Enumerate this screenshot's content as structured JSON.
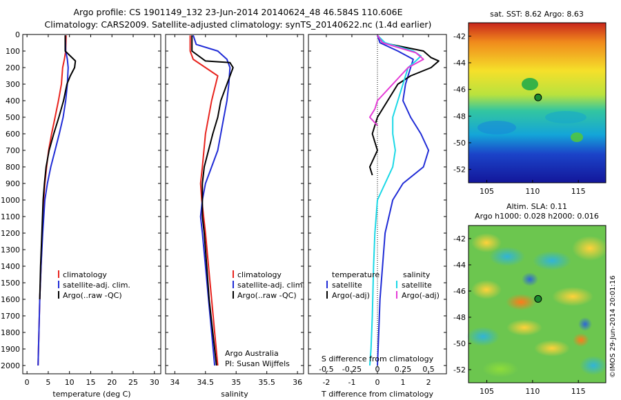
{
  "header": {
    "line1": "Argo profile: CS 1901149_132 23-Jun-2014 20140624_48 46.584S 110.606E",
    "line2": "Climatology: CARS2009. Satellite-adjusted climatology: synTS_20140622.nc (1.4d earlier)"
  },
  "colors": {
    "climatology": "#e8231d",
    "satellite": "#1f2bd6",
    "argo": "#000000",
    "sat_sal": "#19d8e6",
    "argo_sal": "#e53ad6"
  },
  "chart_data": [
    {
      "type": "line",
      "name": "temperature-profile",
      "xlabel": "temperature (deg C)",
      "ylim": [
        0,
        2050
      ],
      "xlim": [
        -1,
        31.5
      ],
      "yticks": [
        0,
        100,
        200,
        300,
        400,
        500,
        600,
        700,
        800,
        900,
        1000,
        1100,
        1200,
        1300,
        1400,
        1500,
        1600,
        1700,
        1800,
        1900,
        2000
      ],
      "xticks": [
        0,
        5,
        10,
        15,
        20,
        25,
        30
      ],
      "legend": [
        "climatology",
        "satellite-adj. clim.",
        "Argo(..raw -QC)"
      ],
      "series": [
        {
          "name": "climatology",
          "color": "#e8231d",
          "points": [
            [
              9.2,
              5
            ],
            [
              9.1,
              100
            ],
            [
              8.8,
              150
            ],
            [
              8.4,
              200
            ],
            [
              8.1,
              300
            ],
            [
              7.4,
              400
            ],
            [
              6.6,
              500
            ],
            [
              5.8,
              600
            ],
            [
              5.1,
              700
            ],
            [
              4.6,
              800
            ],
            [
              4.2,
              900
            ],
            [
              3.9,
              1000
            ],
            [
              3.6,
              1200
            ],
            [
              3.3,
              1400
            ],
            [
              3.0,
              1600
            ],
            [
              2.8,
              1800
            ],
            [
              2.6,
              2000
            ]
          ]
        },
        {
          "name": "satellite-adj. clim.",
          "color": "#1f2bd6",
          "points": [
            [
              9.0,
              5
            ],
            [
              9.1,
              100
            ],
            [
              9.5,
              150
            ],
            [
              9.7,
              200
            ],
            [
              9.5,
              300
            ],
            [
              9.1,
              400
            ],
            [
              8.5,
              500
            ],
            [
              7.6,
              600
            ],
            [
              6.6,
              700
            ],
            [
              5.6,
              800
            ],
            [
              4.8,
              900
            ],
            [
              4.2,
              1000
            ],
            [
              3.7,
              1200
            ],
            [
              3.3,
              1400
            ],
            [
              3.0,
              1600
            ],
            [
              2.8,
              1800
            ],
            [
              2.6,
              2000
            ]
          ]
        },
        {
          "name": "Argo(..raw -QC)",
          "color": "#000000",
          "points": [
            [
              9.0,
              5
            ],
            [
              9.0,
              100
            ],
            [
              10.6,
              140
            ],
            [
              11.4,
              160
            ],
            [
              11.2,
              200
            ],
            [
              10.2,
              250
            ],
            [
              9.4,
              300
            ],
            [
              8.6,
              400
            ],
            [
              7.5,
              500
            ],
            [
              6.3,
              600
            ],
            [
              5.2,
              700
            ],
            [
              4.5,
              800
            ],
            [
              4.1,
              900
            ],
            [
              3.8,
              1000
            ],
            [
              3.5,
              1200
            ],
            [
              3.2,
              1400
            ],
            [
              3.0,
              1600
            ]
          ]
        }
      ]
    },
    {
      "type": "line",
      "name": "salinity-profile",
      "xlabel": "salinity",
      "ylim": [
        0,
        2050
      ],
      "xlim": [
        33.85,
        36.1
      ],
      "xticks": [
        34,
        34.5,
        35,
        35.5,
        36
      ],
      "legend": [
        "climatology",
        "satellite-adj. clim.",
        "Argo(..raw -QC)"
      ],
      "annotations": [
        "Argo Australia",
        "PI: Susan Wijffels"
      ],
      "series": [
        {
          "name": "climatology",
          "color": "#e8231d",
          "points": [
            [
              34.25,
              5
            ],
            [
              34.25,
              100
            ],
            [
              34.3,
              150
            ],
            [
              34.5,
              200
            ],
            [
              34.7,
              250
            ],
            [
              34.6,
              400
            ],
            [
              34.5,
              600
            ],
            [
              34.45,
              800
            ],
            [
              34.42,
              900
            ],
            [
              34.44,
              1000
            ],
            [
              34.5,
              1200
            ],
            [
              34.55,
              1400
            ],
            [
              34.6,
              1600
            ],
            [
              34.65,
              1800
            ],
            [
              34.7,
              2000
            ]
          ]
        },
        {
          "name": "satellite-adj. clim.",
          "color": "#1f2bd6",
          "points": [
            [
              34.3,
              5
            ],
            [
              34.35,
              60
            ],
            [
              34.7,
              100
            ],
            [
              34.85,
              150
            ],
            [
              34.9,
              200
            ],
            [
              34.88,
              300
            ],
            [
              34.85,
              400
            ],
            [
              34.8,
              500
            ],
            [
              34.75,
              600
            ],
            [
              34.7,
              700
            ],
            [
              34.6,
              800
            ],
            [
              34.5,
              900
            ],
            [
              34.45,
              1000
            ],
            [
              34.42,
              1100
            ],
            [
              34.45,
              1200
            ],
            [
              34.5,
              1400
            ],
            [
              34.55,
              1600
            ],
            [
              34.6,
              1800
            ],
            [
              34.65,
              2000
            ]
          ]
        },
        {
          "name": "Argo(..raw -QC)",
          "color": "#000000",
          "points": [
            [
              34.28,
              5
            ],
            [
              34.28,
              100
            ],
            [
              34.5,
              160
            ],
            [
              34.9,
              170
            ],
            [
              34.95,
              200
            ],
            [
              34.85,
              300
            ],
            [
              34.75,
              400
            ],
            [
              34.7,
              500
            ],
            [
              34.62,
              600
            ],
            [
              34.55,
              700
            ],
            [
              34.48,
              800
            ],
            [
              34.45,
              900
            ],
            [
              34.45,
              1000
            ],
            [
              34.45,
              1100
            ],
            [
              34.48,
              1200
            ],
            [
              34.52,
              1400
            ],
            [
              34.56,
              1600
            ],
            [
              34.62,
              1800
            ],
            [
              34.68,
              2000
            ]
          ]
        }
      ]
    },
    {
      "type": "line",
      "name": "difference-profile",
      "xlabel": "T difference from climatology",
      "xlabel2": "S difference from climatology",
      "ylim": [
        0,
        2050
      ],
      "xlim": [
        -2.7,
        2.7
      ],
      "xticks": [
        -2,
        -1,
        0,
        1,
        2
      ],
      "xticks2": [
        "-0.5",
        "-0.25",
        "0",
        "0.25",
        "0.5"
      ],
      "legend_headers": [
        "temperature",
        "salinity"
      ],
      "legend": [
        "satellite",
        "Argo(-adj)",
        "satellite",
        "Argo(-adj)"
      ],
      "series": [
        {
          "name": "temperature satellite",
          "color": "#1f2bd6",
          "points": [
            [
              0,
              5
            ],
            [
              0.1,
              50
            ],
            [
              0.8,
              100
            ],
            [
              1.4,
              150
            ],
            [
              1.3,
              200
            ],
            [
              1.1,
              300
            ],
            [
              1.0,
              400
            ],
            [
              1.3,
              500
            ],
            [
              1.7,
              600
            ],
            [
              2.0,
              700
            ],
            [
              1.8,
              800
            ],
            [
              1.0,
              900
            ],
            [
              0.6,
              1000
            ],
            [
              0.3,
              1200
            ],
            [
              0.2,
              1400
            ],
            [
              0.1,
              1600
            ],
            [
              0.05,
              1800
            ],
            [
              0,
              2000
            ]
          ]
        },
        {
          "name": "temperature Argo(-adj)",
          "color": "#000000",
          "points": [
            [
              0,
              5
            ],
            [
              0.2,
              50
            ],
            [
              1.8,
              100
            ],
            [
              2.1,
              140
            ],
            [
              2.4,
              160
            ],
            [
              2.1,
              200
            ],
            [
              1.3,
              250
            ],
            [
              0.8,
              300
            ],
            [
              0.4,
              400
            ],
            [
              0.0,
              500
            ],
            [
              -0.2,
              600
            ],
            [
              0.0,
              700
            ],
            [
              -0.3,
              800
            ],
            [
              -0.2,
              850
            ]
          ]
        },
        {
          "name": "salinity satellite",
          "color": "#19d8e6",
          "points": [
            [
              0,
              5
            ],
            [
              0.3,
              50
            ],
            [
              1.4,
              100
            ],
            [
              1.7,
              130
            ],
            [
              1.5,
              160
            ],
            [
              1.2,
              200
            ],
            [
              1.0,
              300
            ],
            [
              0.8,
              400
            ],
            [
              0.6,
              500
            ],
            [
              0.6,
              600
            ],
            [
              0.7,
              700
            ],
            [
              0.6,
              800
            ],
            [
              0.3,
              900
            ],
            [
              0.0,
              1000
            ],
            [
              -0.1,
              1200
            ],
            [
              -0.15,
              1400
            ],
            [
              -0.2,
              1700
            ],
            [
              -0.25,
              1900
            ],
            [
              -0.3,
              2000
            ]
          ]
        },
        {
          "name": "salinity Argo(-adj)",
          "color": "#e53ad6",
          "points": [
            [
              0,
              5
            ],
            [
              0.2,
              50
            ],
            [
              1.5,
              110
            ],
            [
              1.8,
              150
            ],
            [
              1.2,
              200
            ],
            [
              0.6,
              300
            ],
            [
              0.3,
              350
            ],
            [
              0.0,
              400
            ],
            [
              -0.1,
              450
            ],
            [
              -0.3,
              500
            ],
            [
              0.0,
              550
            ]
          ]
        }
      ]
    },
    {
      "type": "heatmap",
      "name": "sst-map",
      "title": "sat. SST: 8.62 Argo: 8.63",
      "xticks": [
        105,
        110,
        115
      ],
      "yticks": [
        -42,
        -44,
        -46,
        -48,
        -50,
        -52
      ],
      "xlim": [
        103,
        118
      ],
      "ylim": [
        -53,
        -41
      ],
      "marker": [
        110.6,
        -46.6
      ]
    },
    {
      "type": "heatmap",
      "name": "sla-map",
      "title": "Altim. SLA: 0.11",
      "subtitle": "Argo h1000: 0.028 h2000: 0.016",
      "xticks": [
        105,
        110,
        115
      ],
      "yticks": [
        -42,
        -44,
        -46,
        -48,
        -50,
        -52
      ],
      "xlim": [
        103,
        118
      ],
      "ylim": [
        -53,
        -41
      ],
      "marker": [
        110.6,
        -46.6
      ],
      "side_label": "©IMOS 29-Jun-2014 20:01:16"
    }
  ]
}
